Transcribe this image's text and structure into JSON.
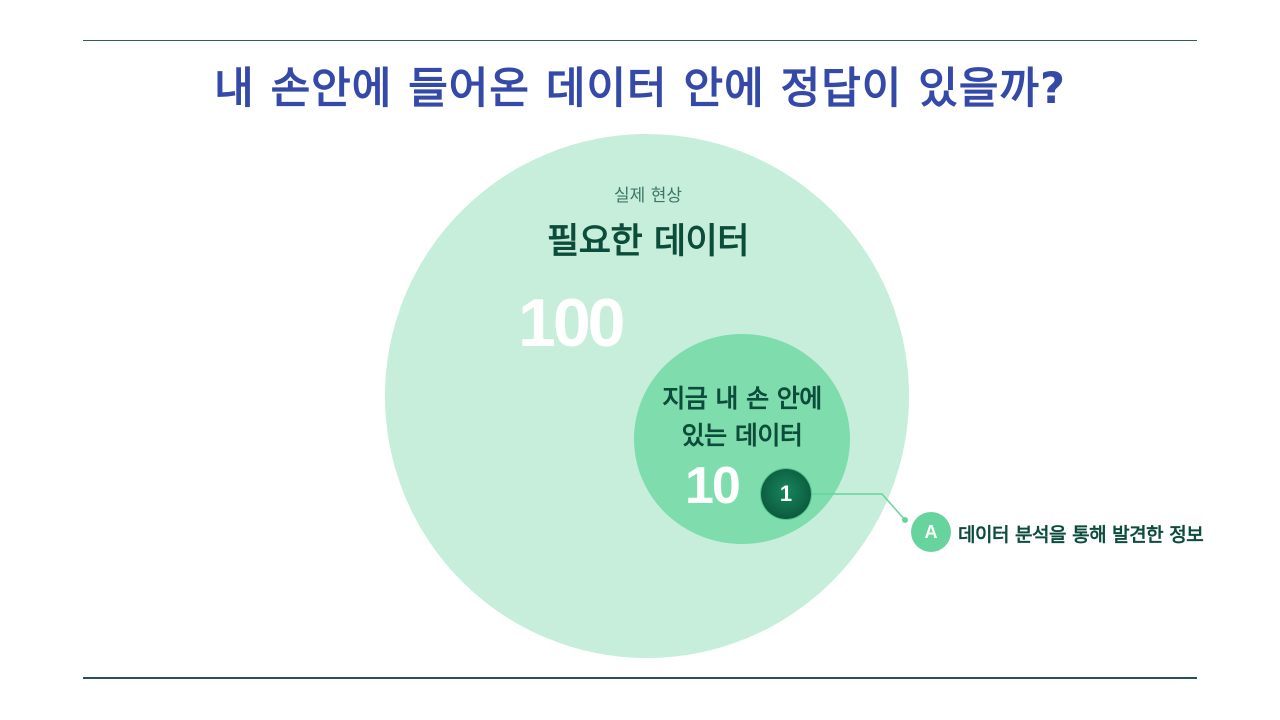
{
  "slide": {
    "title": "내 손안에 들어온 데이터 안에 정답이 있을까?"
  },
  "outer_set": {
    "caption": "실제 현상",
    "heading": "필요한 데이터",
    "value": "100"
  },
  "inner_set": {
    "label_line1": "지금 내 손 안에",
    "label_line2": "있는 데이터",
    "value": "10"
  },
  "insight": {
    "marker": "1"
  },
  "legend": {
    "marker": "A",
    "text": "데이터 분석을 통해 발견한 정보"
  },
  "colors": {
    "title": "#3549a8",
    "outer_circle": "#c6eedb",
    "inner_circle": "#7edcad",
    "marker_dark": "#0d5c40",
    "marker_light": "#67d49e",
    "text_dark_green": "#0c4c3b",
    "rule": "#2f5d5a"
  }
}
